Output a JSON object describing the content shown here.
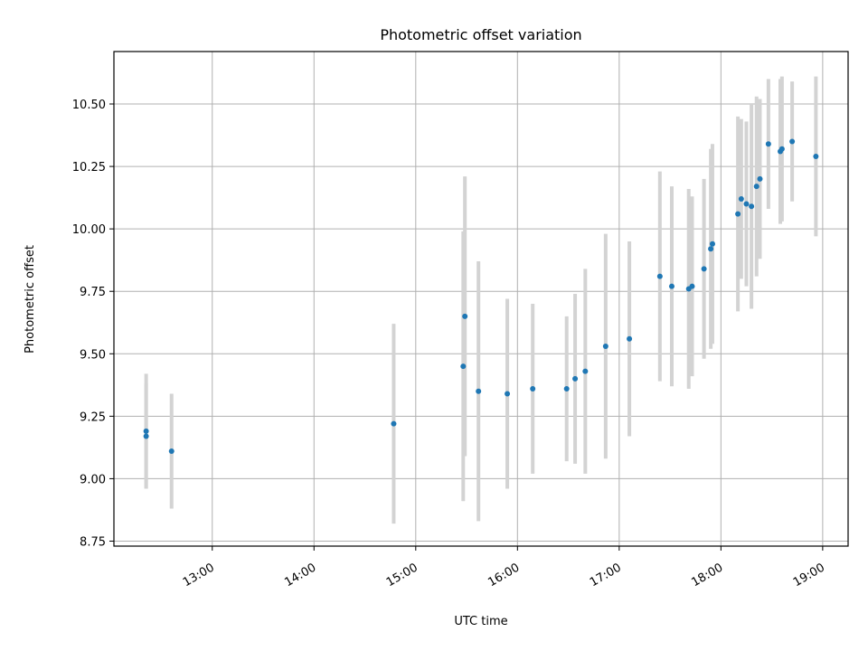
{
  "chart_data": {
    "type": "scatter",
    "title": "Photometric offset variation",
    "xlabel": "UTC time",
    "ylabel": "Photometric offset",
    "x_ticks": [
      "13:00",
      "14:00",
      "15:00",
      "16:00",
      "17:00",
      "18:00",
      "19:00"
    ],
    "y_ticks": [
      "8.75",
      "9.00",
      "9.25",
      "9.50",
      "9.75",
      "10.00",
      "10.25",
      "10.50"
    ],
    "xlim": [
      "12:02",
      "19:15"
    ],
    "ylim": [
      8.73,
      10.71
    ],
    "grid": true,
    "point_color": "#1f77b4",
    "errorbar_color": "#d3d3d3",
    "points": [
      {
        "t": "12:21",
        "y": 9.19,
        "err": 0.23
      },
      {
        "t": "12:21",
        "y": 9.17,
        "err": 0.21
      },
      {
        "t": "12:36",
        "y": 9.11,
        "err": 0.23
      },
      {
        "t": "14:47",
        "y": 9.22,
        "err": 0.4
      },
      {
        "t": "15:28",
        "y": 9.45,
        "err": 0.54
      },
      {
        "t": "15:29",
        "y": 9.65,
        "err": 0.56
      },
      {
        "t": "15:37",
        "y": 9.35,
        "err": 0.52
      },
      {
        "t": "15:54",
        "y": 9.34,
        "err": 0.38
      },
      {
        "t": "16:09",
        "y": 9.36,
        "err": 0.34
      },
      {
        "t": "16:29",
        "y": 9.36,
        "err": 0.29
      },
      {
        "t": "16:34",
        "y": 9.4,
        "err": 0.34
      },
      {
        "t": "16:40",
        "y": 9.43,
        "err": 0.41
      },
      {
        "t": "16:52",
        "y": 9.53,
        "err": 0.45
      },
      {
        "t": "17:06",
        "y": 9.56,
        "err": 0.39
      },
      {
        "t": "17:24",
        "y": 9.81,
        "err": 0.42
      },
      {
        "t": "17:31",
        "y": 9.77,
        "err": 0.4
      },
      {
        "t": "17:41",
        "y": 9.76,
        "err": 0.4
      },
      {
        "t": "17:43",
        "y": 9.77,
        "err": 0.36
      },
      {
        "t": "17:50",
        "y": 9.84,
        "err": 0.36
      },
      {
        "t": "17:54",
        "y": 9.92,
        "err": 0.4
      },
      {
        "t": "17:55",
        "y": 9.94,
        "err": 0.4
      },
      {
        "t": "18:10",
        "y": 10.06,
        "err": 0.39
      },
      {
        "t": "18:12",
        "y": 10.12,
        "err": 0.32
      },
      {
        "t": "18:15",
        "y": 10.1,
        "err": 0.33
      },
      {
        "t": "18:18",
        "y": 10.09,
        "err": 0.41
      },
      {
        "t": "18:21",
        "y": 10.17,
        "err": 0.36
      },
      {
        "t": "18:23",
        "y": 10.2,
        "err": 0.32
      },
      {
        "t": "18:28",
        "y": 10.34,
        "err": 0.26
      },
      {
        "t": "18:35",
        "y": 10.31,
        "err": 0.29
      },
      {
        "t": "18:36",
        "y": 10.32,
        "err": 0.29
      },
      {
        "t": "18:42",
        "y": 10.35,
        "err": 0.24
      },
      {
        "t": "18:56",
        "y": 10.29,
        "err": 0.32
      }
    ]
  }
}
